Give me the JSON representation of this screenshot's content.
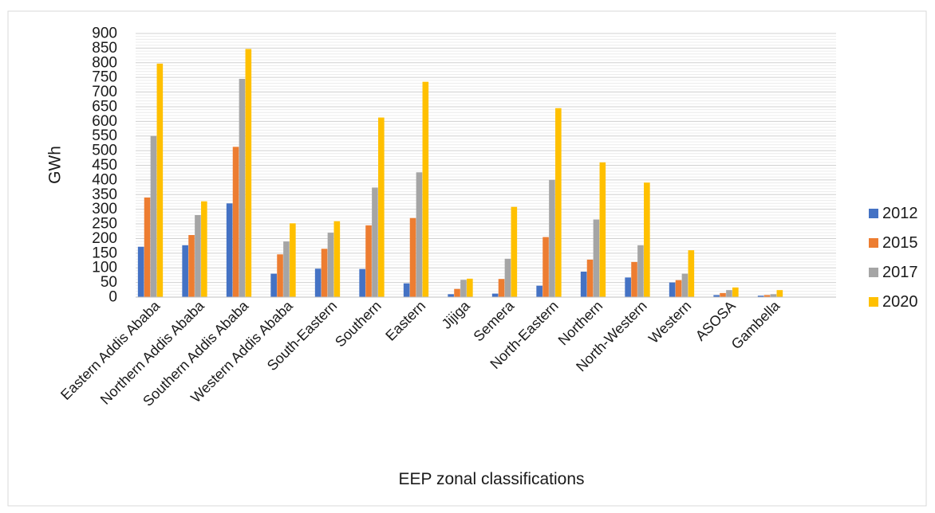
{
  "chart_data": {
    "type": "bar",
    "title": "",
    "xlabel": "EEP zonal classifications",
    "ylabel": "GWh",
    "ylim": [
      0,
      900
    ],
    "ytick_step": 50,
    "minor_grid_step": 10,
    "grid": true,
    "legend_position": "right",
    "categories": [
      "Eastern Addis Ababa",
      "Northern Addis Ababa",
      "Southern Addis Ababa",
      "Western Addis Ababa",
      "South-Eastern",
      "Southern",
      "Eastern",
      "Jijiga",
      "Semera",
      "North-Eastern",
      "Northern",
      "North-Western",
      "Western",
      "ASOSA",
      "Gambella"
    ],
    "series": [
      {
        "name": "2012",
        "color": "#4472C4",
        "values": [
          172,
          177,
          320,
          80,
          97,
          96,
          47,
          10,
          12,
          39,
          87,
          67,
          50,
          7,
          5
        ]
      },
      {
        "name": "2015",
        "color": "#ED7D31",
        "values": [
          340,
          212,
          513,
          146,
          165,
          245,
          270,
          28,
          62,
          205,
          128,
          120,
          58,
          14,
          7
        ]
      },
      {
        "name": "2017",
        "color": "#A5A5A5",
        "values": [
          550,
          280,
          745,
          190,
          220,
          374,
          426,
          59,
          131,
          400,
          265,
          177,
          80,
          24,
          10
        ]
      },
      {
        "name": "2020",
        "color": "#FFC000",
        "values": [
          797,
          327,
          847,
          252,
          259,
          613,
          735,
          63,
          308,
          645,
          460,
          391,
          160,
          33,
          24
        ]
      }
    ]
  }
}
